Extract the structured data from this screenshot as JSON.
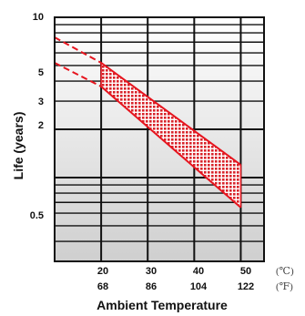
{
  "chart_data": {
    "type": "area",
    "ylabel": "Life (years)",
    "xlabel": "Ambient Temperature",
    "xlim": [
      10,
      55
    ],
    "ylim": [
      0.3,
      10
    ],
    "y_scale": "log",
    "grid": true,
    "y_tick_labels": [
      "10",
      "5",
      "3",
      "2",
      "0.5"
    ],
    "x_tick_labels_c": [
      "20",
      "30",
      "40",
      "50"
    ],
    "x_tick_labels_f": [
      "68",
      "86",
      "104",
      "122"
    ],
    "unit_c": "(℃)",
    "unit_f": "(℉)",
    "series": [
      {
        "style": "dashed",
        "x": [
          10,
          20
        ],
        "y": [
          7.5,
          5.2
        ]
      },
      {
        "style": "solid",
        "x": [
          20,
          50
        ],
        "y": [
          5.2,
          1.2
        ]
      },
      {
        "style": "dashed",
        "x": [
          10,
          20
        ],
        "y": [
          5.2,
          3.7
        ]
      },
      {
        "style": "solid",
        "x": [
          20,
          50
        ],
        "y": [
          3.7,
          0.65
        ]
      }
    ],
    "band": {
      "x_upper": [
        20,
        50
      ],
      "y_upper": [
        5.2,
        1.2
      ],
      "x_lower": [
        20,
        50
      ],
      "y_lower": [
        3.7,
        0.65
      ]
    },
    "colors": {
      "curve": "#e6141e",
      "fill": "#d8232a",
      "grid": "#111111",
      "background_top": "#ffffff",
      "background_bottom": "#cfcfcf"
    }
  }
}
